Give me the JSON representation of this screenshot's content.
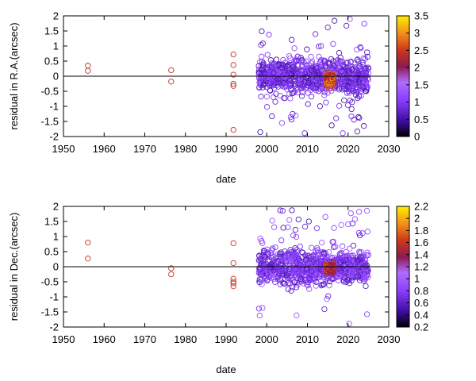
{
  "chart_data": [
    {
      "type": "scatter",
      "xlabel": "date",
      "ylabel": "residual in R.A.(arcsec)",
      "xlim": [
        1950,
        2030
      ],
      "ylim": [
        -2,
        2
      ],
      "xticks": [
        1950,
        1960,
        1970,
        1980,
        1990,
        2000,
        2010,
        2020,
        2030
      ],
      "yticks": [
        -2,
        -1.5,
        -1,
        -0.5,
        0,
        0.5,
        1,
        1.5,
        2
      ],
      "colorbar": {
        "range": [
          0,
          3.5
        ],
        "ticks": [
          "3.5",
          "3",
          "2.5",
          "2",
          "1.5",
          "1",
          "0.5",
          "0"
        ]
      },
      "zero_line": true,
      "grid": false,
      "marker": "open-circle",
      "sparse_points": [
        {
          "x": 1956,
          "y": 0.35,
          "c": 2.4
        },
        {
          "x": 1956,
          "y": 0.18,
          "c": 2.4
        },
        {
          "x": 1976.5,
          "y": 0.2,
          "c": 2.4
        },
        {
          "x": 1976.5,
          "y": -0.18,
          "c": 2.4
        },
        {
          "x": 1991.8,
          "y": 0.72,
          "c": 2.4
        },
        {
          "x": 1991.8,
          "y": 0.37,
          "c": 2.4
        },
        {
          "x": 1991.8,
          "y": 0.05,
          "c": 2.4
        },
        {
          "x": 1991.8,
          "y": -0.25,
          "c": 2.4
        },
        {
          "x": 1991.8,
          "y": -0.32,
          "c": 2.4
        },
        {
          "x": 1991.8,
          "y": -1.78,
          "c": 2.4
        }
      ],
      "dense_clusters": [
        {
          "x_range": [
            1998,
            2025
          ],
          "y_center": 0,
          "y_spread": 0.55,
          "c_range": [
            0.5,
            1.3
          ]
        },
        {
          "x_range": [
            2014.5,
            2016.5
          ],
          "y_center": -0.1,
          "y_spread": 0.2,
          "c_range": [
            2.0,
            3.2
          ]
        }
      ]
    },
    {
      "type": "scatter",
      "xlabel": "date",
      "ylabel": "residual in Dec.(arcsec)",
      "xlim": [
        1950,
        2030
      ],
      "ylim": [
        -2,
        2
      ],
      "xticks": [
        1950,
        1960,
        1970,
        1980,
        1990,
        2000,
        2010,
        2020,
        2030
      ],
      "yticks": [
        -2,
        -1.5,
        -1,
        -0.5,
        0,
        0.5,
        1,
        1.5,
        2
      ],
      "colorbar": {
        "range": [
          0.2,
          2.2
        ],
        "ticks": [
          "2.2",
          "2",
          "1.8",
          "1.6",
          "1.4",
          "1.2",
          "1",
          "0.8",
          "0.6",
          "0.4",
          "0.2"
        ]
      },
      "zero_line": true,
      "grid": false,
      "marker": "open-circle",
      "sparse_points": [
        {
          "x": 1956,
          "y": 0.8,
          "c": 1.6
        },
        {
          "x": 1956,
          "y": 0.27,
          "c": 1.6
        },
        {
          "x": 1976.5,
          "y": -0.05,
          "c": 1.6
        },
        {
          "x": 1976.5,
          "y": -0.25,
          "c": 1.6
        },
        {
          "x": 1991.8,
          "y": 0.78,
          "c": 1.6
        },
        {
          "x": 1991.8,
          "y": 0.12,
          "c": 1.6
        },
        {
          "x": 1991.8,
          "y": -0.4,
          "c": 1.6
        },
        {
          "x": 1991.8,
          "y": -0.5,
          "c": 1.6
        },
        {
          "x": 1991.8,
          "y": -0.55,
          "c": 1.6
        },
        {
          "x": 1991.8,
          "y": -0.65,
          "c": 1.6
        }
      ],
      "dense_clusters": [
        {
          "x_range": [
            1998,
            2025
          ],
          "y_center": 0,
          "y_spread": 0.55,
          "c_range": [
            0.5,
            1.0
          ]
        },
        {
          "x_range": [
            2014.5,
            2016.5
          ],
          "y_center": -0.05,
          "y_spread": 0.15,
          "c_range": [
            1.3,
            1.8
          ]
        }
      ]
    }
  ]
}
